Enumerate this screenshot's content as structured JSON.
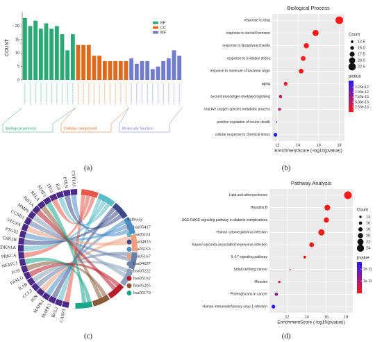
{
  "panels": [
    "(a)",
    "(b)",
    "(c)",
    "(d)"
  ],
  "chart_data": [
    {
      "type": "bar",
      "ylabel": "COUNT",
      "categories": [
        null,
        null,
        null,
        null,
        null,
        null,
        null,
        null,
        null,
        null,
        null,
        null,
        null,
        null,
        null,
        null,
        null,
        null,
        null,
        null,
        null,
        null,
        null,
        null,
        null,
        null,
        null,
        null,
        null,
        null
      ],
      "series": [
        {
          "name": "BP",
          "color": "#2aa876",
          "group_label": "Biological process",
          "values": [
            23,
            20,
            22,
            19,
            21,
            19,
            20,
            17,
            11,
            17,
            null,
            null,
            null,
            null,
            null,
            null,
            null,
            null,
            null,
            null,
            null,
            null,
            null,
            null,
            null,
            null,
            null,
            null,
            null,
            null
          ]
        },
        {
          "name": "CC",
          "color": "#e0691c",
          "group_label": "Cellular component",
          "values": [
            null,
            null,
            null,
            null,
            null,
            null,
            null,
            null,
            null,
            null,
            13,
            13,
            13,
            9,
            9,
            7,
            7,
            7,
            7,
            7,
            null,
            null,
            null,
            null,
            null,
            null,
            null,
            null,
            null,
            null
          ]
        },
        {
          "name": "MF",
          "color": "#6f7ccc",
          "group_label": "Molecular function",
          "values": [
            null,
            null,
            null,
            null,
            null,
            null,
            null,
            null,
            null,
            null,
            null,
            null,
            null,
            null,
            null,
            null,
            null,
            null,
            null,
            null,
            8,
            6,
            7,
            7,
            4,
            5,
            7,
            8,
            11,
            9
          ]
        }
      ],
      "ylim": [
        0,
        24
      ],
      "yticks": [
        0,
        5,
        10,
        15,
        20
      ]
    },
    {
      "type": "bubble",
      "title": "Biological Process",
      "xlabel": "EnrichmentScore (-log10(pvalue))",
      "categories": [
        "response to drug",
        "response to steroid hormone",
        "response to lipopolysaccharide",
        "response to oxidative stress",
        "response to molecule of bacterial origin",
        "aging",
        "second-messenger-mediated signaling",
        "reactive oxygen species metabolic process",
        "positive regulation of neuron death",
        "cellular response to chemical stress"
      ],
      "values": [
        18,
        15.7,
        14.8,
        14.5,
        14.3,
        12.8,
        12.3,
        12.2,
        11.9,
        11.8
      ],
      "size": [
        23,
        20,
        18,
        17,
        17,
        15,
        14,
        13,
        10,
        15
      ],
      "pvalue": [
        1e-18,
        2e-16,
        1.6e-15,
        3.2e-15,
        5e-15,
        1.6e-13,
        5e-13,
        6.3e-13,
        1.26e-12,
        1.58e-12
      ],
      "xlim": [
        11.5,
        18.5
      ],
      "xticks": [
        12,
        14,
        16,
        18
      ],
      "size_title": "Count",
      "size_lim": [
        10,
        23
      ],
      "size_ticks": [
        {
          "value": 12.5,
          "label": "12.5"
        },
        {
          "value": 15,
          "label": "15.0"
        },
        {
          "value": 17.5,
          "label": "17.5"
        },
        {
          "value": 20,
          "label": "20.0"
        },
        {
          "value": 22.5,
          "label": "22.5"
        }
      ],
      "color_title": "pvalue",
      "clim": [
        0,
        1.6e-12
      ],
      "colors": [
        "#ff1a1a",
        "#2a1aff"
      ],
      "color_ticks": [
        {
          "value": 1.25e-12,
          "label": "1.25e-12"
        },
        {
          "value": 1e-12,
          "label": "1.00e-12"
        },
        {
          "value": 7.5e-13,
          "label": "7.50e-13"
        },
        {
          "value": 5e-13,
          "label": "5.00e-13"
        },
        {
          "value": 2.5e-13,
          "label": "2.50e-13"
        }
      ]
    },
    {
      "type": "chord",
      "legend_title": "Pathway",
      "labels": [
        "CASP3",
        "BCL2",
        "MAPK3",
        "MAPK1",
        "JUN",
        "CCL2",
        "IL1B",
        "FASLG",
        "FOS",
        "NFATC1",
        "PRKCA",
        "CDKN1A",
        "GSK3B",
        "PTGS2",
        "VEGFA",
        "CCND1",
        "MMP9",
        "HIF1A",
        "RELA",
        "STAT3",
        "TP53",
        "IL6",
        "PTEN",
        "CYP1A1"
      ],
      "series": [
        {
          "name": "hsa05417",
          "color": "#e8584a"
        },
        {
          "name": "hsa05161",
          "color": "#5bbbc6"
        },
        {
          "name": "hsa04933",
          "color": "#3d4a8a"
        },
        {
          "name": "hsa05163",
          "color": "#4a8cc4"
        },
        {
          "name": "hsa05167",
          "color": "#f0a080"
        },
        {
          "name": "hsa04657",
          "color": "#6a7fa8"
        },
        {
          "name": "hsa05222",
          "color": "#8aa0b8"
        },
        {
          "name": "hsa05162",
          "color": "#b81c2a"
        },
        {
          "name": "hsa05205",
          "color": "#8a5a3a"
        },
        {
          "name": "hsa05170",
          "color": "#1aa58a"
        }
      ]
    },
    {
      "type": "bubble",
      "title": "Pathway Analysis",
      "xlabel": "EnrichmentScore (-log10(pvalue))",
      "categories": [
        "Lipid and atherosclerosis",
        "Hepatitis B",
        "AGE-RAGE signaling pathway in diabetic complications",
        "Human cytomegalovirus infection",
        "Kaposi sarcoma-associated herpesvirus infection",
        "IL-17 signaling pathway",
        "Small cell lung cancer",
        "Measles",
        "Proteoglycans in cancer",
        "Human immunodeficiency virus 1 infection"
      ],
      "values": [
        18.2,
        16.1,
        16.0,
        15.5,
        14.5,
        13.8,
        12.3,
        11.2,
        10.9,
        10.6
      ],
      "size": [
        25,
        21,
        20,
        22,
        19,
        15,
        12,
        14,
        16,
        17
      ],
      "pvalue": [
        6.3e-19,
        7.9e-17,
        1e-16,
        3.2e-16,
        3.2e-15,
        1.6e-14,
        5e-13,
        6.3e-12,
        1.26e-11,
        2.5e-11
      ],
      "xlim": [
        10.2,
        18.7
      ],
      "xticks": [
        12,
        14,
        16,
        18
      ],
      "size_title": "Count",
      "size_lim": [
        12,
        25
      ],
      "size_ticks": [
        14,
        16,
        18,
        20,
        22,
        24
      ],
      "color_title": "pvalue",
      "clim": [
        0,
        2.6e-11
      ],
      "colors": [
        "#ff1a1a",
        "#2a1aff"
      ],
      "color_ticks": [
        {
          "value": 2e-11,
          "label": "2e-11"
        },
        {
          "value": 1e-11,
          "label": "1e-11"
        }
      ]
    }
  ]
}
